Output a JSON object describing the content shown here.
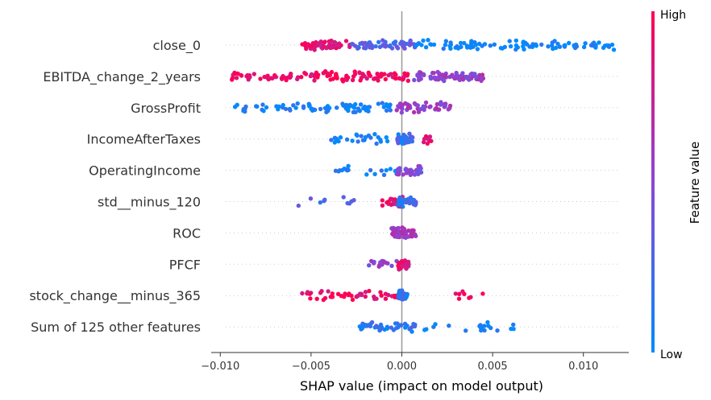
{
  "chart_data": {
    "type": "scatter",
    "subtype": "shap-beeswarm",
    "xlabel": "SHAP value (impact on model output)",
    "xlim": [
      -0.0105,
      0.0125
    ],
    "xticks": [
      "−0.010",
      "−0.005",
      "0.000",
      "0.005",
      "0.010"
    ],
    "xtick_values": [
      -0.01,
      -0.005,
      0.0,
      0.005,
      0.01
    ],
    "grid": false,
    "colorbar": {
      "title": "Feature value",
      "high_label": "High",
      "low_label": "Low",
      "high_color": "#ff0052",
      "low_color": "#008bfb"
    },
    "features": [
      {
        "name": "close_0",
        "clusters": [
          {
            "min": -0.0056,
            "max": -0.0028,
            "feat": 0.85,
            "n": 55
          },
          {
            "min": -0.0028,
            "max": 0.0008,
            "feat": 0.3,
            "n": 55
          },
          {
            "min": 0.0008,
            "max": 0.0118,
            "feat": 0.03,
            "n": 95
          }
        ]
      },
      {
        "name": "EBITDA_change_2_years",
        "clusters": [
          {
            "min": -0.0094,
            "max": -0.0045,
            "feat": 0.9,
            "n": 50
          },
          {
            "min": -0.0045,
            "max": 0.0005,
            "feat": 0.97,
            "n": 65
          },
          {
            "min": 0.0005,
            "max": 0.0045,
            "feat": 0.55,
            "n": 75
          }
        ]
      },
      {
        "name": "GrossProfit",
        "clusters": [
          {
            "min": -0.0093,
            "max": -0.0055,
            "feat": 0.05,
            "n": 25
          },
          {
            "min": -0.0055,
            "max": -0.0005,
            "feat": 0.05,
            "n": 55
          },
          {
            "min": -0.0005,
            "max": 0.0027,
            "feat": 0.55,
            "n": 45
          }
        ]
      },
      {
        "name": "IncomeAfterTaxes",
        "clusters": [
          {
            "min": -0.0039,
            "max": -0.0003,
            "feat": 0.05,
            "n": 25
          },
          {
            "min": -0.0003,
            "max": 0.0006,
            "feat": 0.2,
            "n": 40
          },
          {
            "min": 0.0012,
            "max": 0.0017,
            "feat": 0.9,
            "n": 8
          }
        ]
      },
      {
        "name": "OperatingIncome",
        "clusters": [
          {
            "min": -0.0039,
            "max": -0.0002,
            "feat": 0.05,
            "n": 18
          },
          {
            "min": -0.0003,
            "max": 0.0011,
            "feat": 0.45,
            "n": 40
          }
        ]
      },
      {
        "name": "std__minus_120",
        "clusters": [
          {
            "min": -0.0058,
            "max": -0.0025,
            "feat": 0.3,
            "n": 10
          },
          {
            "min": -0.0011,
            "max": 0.0001,
            "feat": 0.85,
            "n": 20
          },
          {
            "min": -0.0002,
            "max": 0.0008,
            "feat": 0.2,
            "n": 45
          }
        ]
      },
      {
        "name": "ROC",
        "clusters": [
          {
            "min": -0.0006,
            "max": 0.0008,
            "feat": 0.6,
            "n": 65
          }
        ]
      },
      {
        "name": "PFCF",
        "clusters": [
          {
            "min": -0.0019,
            "max": -0.0002,
            "feat": 0.5,
            "n": 15
          },
          {
            "min": -0.0002,
            "max": 0.0004,
            "feat": 0.85,
            "n": 30
          }
        ]
      },
      {
        "name": "stock_change__minus_365",
        "clusters": [
          {
            "min": -0.0055,
            "max": -0.0002,
            "feat": 0.92,
            "n": 45
          },
          {
            "min": -0.0002,
            "max": 0.0003,
            "feat": 0.15,
            "n": 45
          },
          {
            "min": 0.0028,
            "max": 0.0046,
            "feat": 0.9,
            "n": 8
          }
        ]
      },
      {
        "name": "Sum of 125 other features",
        "clusters": [
          {
            "min": -0.0024,
            "max": 0.0008,
            "feat": 0.15,
            "n": 45
          },
          {
            "min": 0.0012,
            "max": 0.0065,
            "feat": 0.05,
            "n": 20
          }
        ]
      }
    ]
  }
}
